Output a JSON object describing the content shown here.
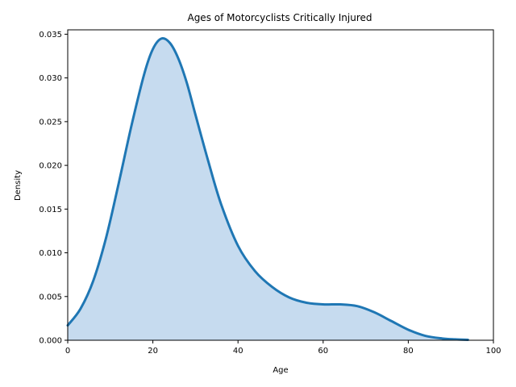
{
  "chart_data": {
    "type": "area",
    "title": "Ages of Motorcyclists Critically Injured",
    "xlabel": "Age",
    "ylabel": "Density",
    "xlim": [
      0,
      100
    ],
    "ylim": [
      0,
      0.0355
    ],
    "xticks": [
      0,
      20,
      40,
      60,
      80,
      100
    ],
    "xtick_labels": [
      "0",
      "20",
      "40",
      "60",
      "80",
      "100"
    ],
    "yticks": [
      0,
      0.005,
      0.01,
      0.015,
      0.02,
      0.025,
      0.03,
      0.035
    ],
    "ytick_labels": [
      "0.000",
      "0.005",
      "0.010",
      "0.015",
      "0.020",
      "0.025",
      "0.030",
      "0.035"
    ],
    "grid": false,
    "line_color": "#1f77b4",
    "fill_color": "#c6dbef",
    "series": [
      {
        "x": [
          0,
          3,
          6,
          9,
          12,
          15,
          18,
          20,
          22,
          24,
          26,
          28,
          30,
          33,
          36,
          40,
          44,
          48,
          52,
          56,
          60,
          64,
          68,
          72,
          76,
          80,
          84,
          88,
          91,
          94
        ],
        "y": [
          0.0017,
          0.0036,
          0.0068,
          0.0117,
          0.018,
          0.0246,
          0.0305,
          0.0333,
          0.0345,
          0.034,
          0.0322,
          0.0294,
          0.0258,
          0.0205,
          0.0156,
          0.0108,
          0.0079,
          0.0061,
          0.0049,
          0.0043,
          0.0041,
          0.0041,
          0.0039,
          0.0032,
          0.0022,
          0.0012,
          0.0005,
          0.0002,
          0.0001,
          5e-05
        ]
      }
    ]
  }
}
